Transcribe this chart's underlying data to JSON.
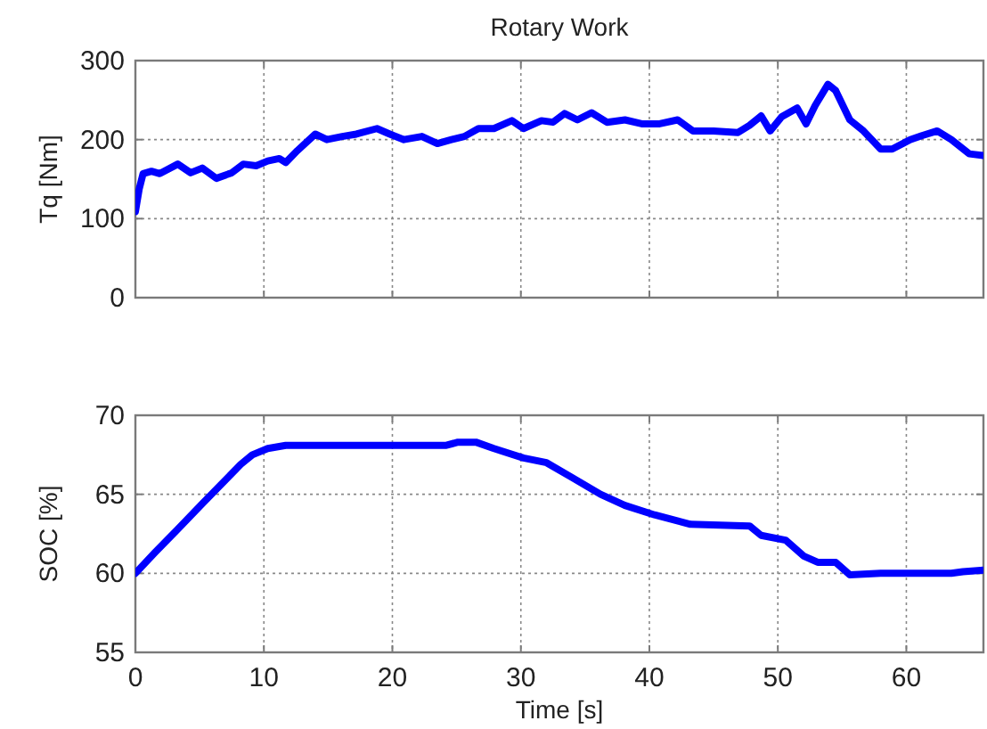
{
  "chart_data": [
    {
      "type": "line",
      "title": "Rotary Work",
      "ylabel": "Tq [Nm]",
      "xlim": [
        0,
        66
      ],
      "xticks": [
        0,
        10,
        20,
        30,
        40,
        50,
        60
      ],
      "ylim": [
        0,
        300
      ],
      "yticks": [
        0,
        100,
        200,
        300
      ],
      "grid": true,
      "tick_labels": "y",
      "x": [
        0,
        0.3,
        0.6,
        1.25,
        1.9,
        3.3,
        4.3,
        5.2,
        6.3,
        7.5,
        8.4,
        9.4,
        10.3,
        11.2,
        11.7,
        12.6,
        14,
        14.9,
        16.1,
        17.2,
        18.8,
        19.8,
        20.9,
        22.3,
        23.5,
        24.6,
        25.6,
        26.7,
        27.9,
        29.3,
        30.2,
        31.6,
        32.5,
        33.4,
        34.4,
        35.5,
        36.7,
        38.1,
        39.4,
        40.8,
        42.2,
        43.4,
        45,
        46.9,
        47.8,
        48.7,
        49.4,
        50.3,
        51.5,
        52.2,
        52.9,
        53.9,
        54.5,
        55.6,
        56.6,
        58,
        58.9,
        60.3,
        61.2,
        62.4,
        63.5,
        64.9,
        66
      ],
      "series": [
        {
          "color": "#0000ff",
          "values": [
            109,
            138,
            157,
            160,
            157,
            169,
            158,
            164,
            151,
            158,
            169,
            167,
            173,
            176,
            171,
            186,
            207,
            200,
            204,
            207,
            214,
            207,
            200,
            204,
            195,
            200,
            204,
            214,
            214,
            224,
            214,
            224,
            222,
            233,
            225,
            234,
            222,
            225,
            220,
            220,
            225,
            211,
            211,
            209,
            218,
            230,
            211,
            229,
            240,
            220,
            243,
            270,
            262,
            225,
            212,
            188,
            188,
            200,
            205,
            211,
            200,
            182,
            180
          ]
        }
      ]
    },
    {
      "type": "line",
      "xlabel": "Time [s]",
      "ylabel": "SOC [%]",
      "xlim": [
        0,
        66
      ],
      "xticks": [
        0,
        10,
        20,
        30,
        40,
        50,
        60
      ],
      "ylim": [
        55,
        70
      ],
      "yticks": [
        55,
        60,
        65,
        70
      ],
      "grid": true,
      "x": [
        0,
        1.5,
        3.3,
        5.2,
        7,
        8.2,
        9.1,
        10.3,
        11.7,
        16.3,
        20.9,
        24.2,
        25.1,
        26.5,
        27.9,
        30.2,
        32,
        33.9,
        36.2,
        38.1,
        40.4,
        43.2,
        47.8,
        48.7,
        50.6,
        52,
        53.1,
        54.5,
        55.6,
        58,
        63.5,
        64.4,
        66
      ],
      "series": [
        {
          "color": "#0000ff",
          "values": [
            60.0,
            61.3,
            62.8,
            64.4,
            65.9,
            66.9,
            67.5,
            67.9,
            68.1,
            68.1,
            68.1,
            68.1,
            68.3,
            68.3,
            67.9,
            67.3,
            67.0,
            66.1,
            65.0,
            64.3,
            63.7,
            63.1,
            63.0,
            62.4,
            62.1,
            61.1,
            60.7,
            60.7,
            59.9,
            60.0,
            60.0,
            60.1,
            60.2
          ]
        }
      ]
    }
  ]
}
